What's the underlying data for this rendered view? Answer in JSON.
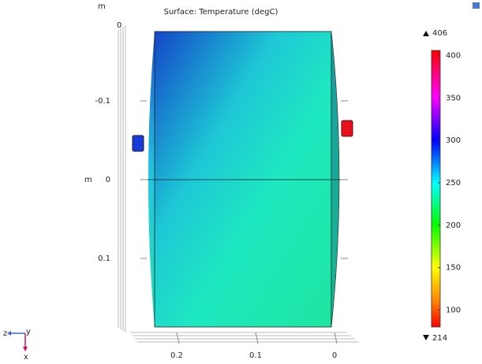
{
  "chart_data": {
    "type": "surface",
    "title": "Surface: Temperature (degC)",
    "y_unit": "m",
    "side_unit": "m",
    "z_tick": 0,
    "xlim": [
      0.259,
      -0.026
    ],
    "xticks": [
      0.2,
      0.1,
      0
    ],
    "ylim": [
      -0.188,
      0.187
    ],
    "yticks": [
      -0.1,
      0,
      0.1
    ],
    "colorbar": {
      "clim": [
        80,
        406
      ],
      "ticks": [
        100,
        150,
        200,
        250,
        300,
        350,
        400
      ],
      "max": 406,
      "min": 214
    },
    "triad": {
      "z": "z",
      "y": "y",
      "x": "x"
    }
  }
}
